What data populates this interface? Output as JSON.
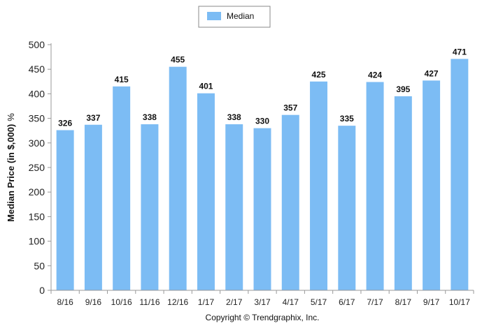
{
  "chart_data": {
    "type": "bar",
    "categories": [
      "8/16",
      "9/16",
      "10/16",
      "11/16",
      "12/16",
      "1/17",
      "2/17",
      "3/17",
      "4/17",
      "5/17",
      "6/17",
      "7/17",
      "8/17",
      "9/17",
      "10/17"
    ],
    "series": [
      {
        "name": "Median",
        "values": [
          326,
          337,
          415,
          338,
          455,
          401,
          338,
          330,
          357,
          425,
          335,
          424,
          395,
          427,
          471
        ],
        "color": "#7cbcf4"
      }
    ],
    "ylabel": "Median Price (in $,000)",
    "ylabel_unit": "%",
    "ylim": [
      0,
      500
    ],
    "yticks": [
      0,
      50,
      100,
      150,
      200,
      250,
      300,
      350,
      400,
      450,
      500
    ],
    "grid": false,
    "legend_position": "top-center",
    "show_data_labels": true
  },
  "footer": {
    "copyright": "Copyright © Trendgraphix, Inc."
  }
}
